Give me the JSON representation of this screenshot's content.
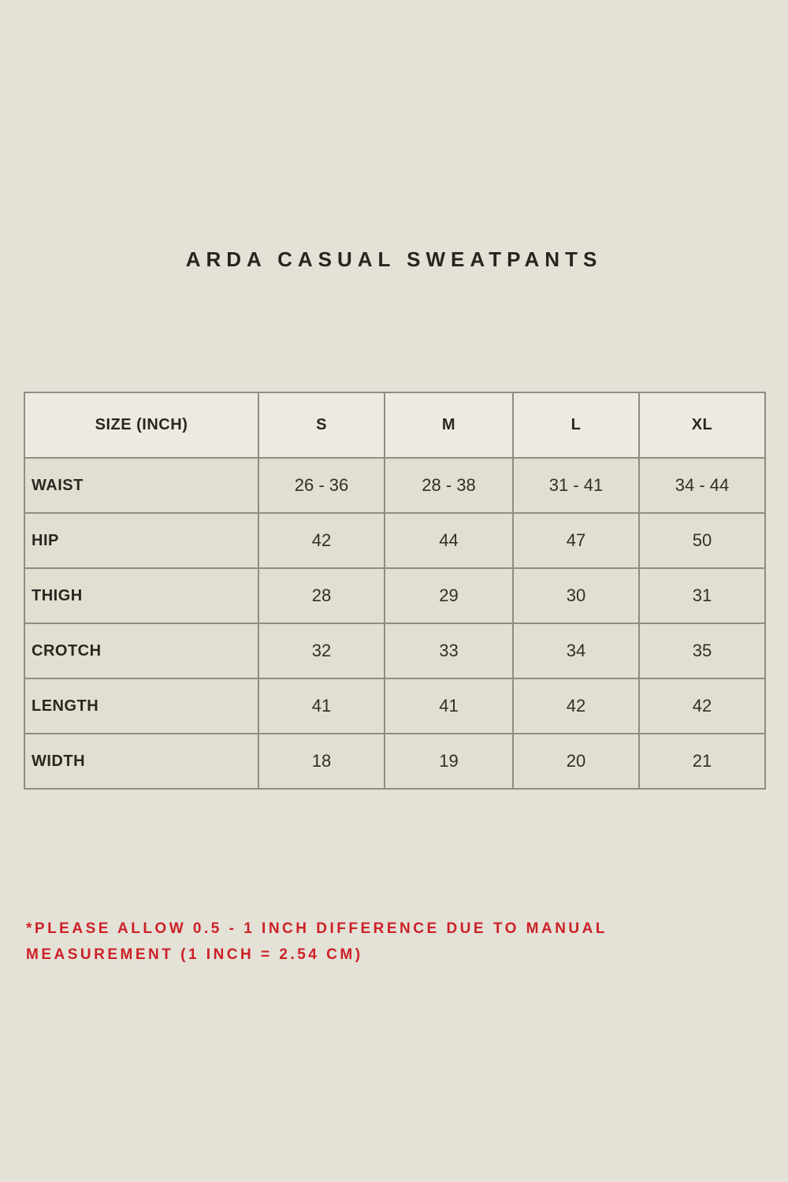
{
  "page": {
    "title": "ARDA CASUAL SWEATPANTS",
    "background_color": "#e4e1d7",
    "text_color": "#28251f"
  },
  "table": {
    "columns": [
      "SIZE (INCH)",
      "S",
      "M",
      "L",
      "XL"
    ],
    "rows": [
      {
        "label": "WAIST",
        "values": [
          "26 - 36",
          "28 - 38",
          "31 - 41",
          "34 - 44"
        ]
      },
      {
        "label": "HIP",
        "values": [
          "42",
          "44",
          "47",
          "50"
        ]
      },
      {
        "label": "THIGH",
        "values": [
          "28",
          "29",
          "30",
          "31"
        ]
      },
      {
        "label": "CROTCH",
        "values": [
          "32",
          "33",
          "34",
          "35"
        ]
      },
      {
        "label": "LENGTH",
        "values": [
          "41",
          "41",
          "42",
          "42"
        ]
      },
      {
        "label": "WIDTH",
        "values": [
          "18",
          "19",
          "20",
          "21"
        ]
      }
    ],
    "colors": {
      "header_bg": "#edebe1",
      "body_bg": "#e2dfd1",
      "border": "#8f8c84"
    }
  },
  "footnote": {
    "text": "*PLEASE ALLOW 0.5 - 1 INCH DIFFERENCE DUE TO MANUAL MEASUREMENT (1 INCH = 2.54 CM)",
    "color": "#cc2127"
  }
}
